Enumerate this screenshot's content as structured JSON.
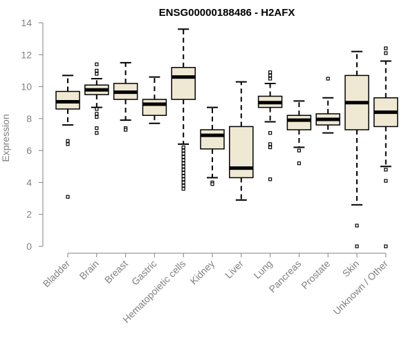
{
  "chart_data": {
    "type": "box",
    "title": "ENSG00000188486 - H2AFX",
    "xlabel": "",
    "ylabel": "Expression",
    "ylim": [
      0,
      14
    ],
    "yticks": [
      0,
      2,
      4,
      6,
      8,
      10,
      12,
      14
    ],
    "box_fill": "#efe8d3",
    "categories": [
      "Bladder",
      "Brain",
      "Breast",
      "Gastric",
      "Hematopoietic cells",
      "Kidney",
      "Liver",
      "Lung",
      "Pancreas",
      "Prostate",
      "Skin",
      "Unknown / Other"
    ],
    "series": [
      {
        "name": "Bladder",
        "whisker_low": 7.6,
        "q1": 8.6,
        "median": 9.05,
        "q3": 9.7,
        "whisker_high": 10.7,
        "outliers": [
          6.6,
          6.4,
          3.1
        ]
      },
      {
        "name": "Brain",
        "whisker_low": 8.7,
        "q1": 9.5,
        "median": 9.8,
        "q3": 10.1,
        "whisker_high": 10.5,
        "outliers": [
          11.4,
          11.0,
          10.8,
          8.6,
          8.3,
          8.1,
          7.4,
          7.1
        ]
      },
      {
        "name": "Breast",
        "whisker_low": 7.9,
        "q1": 9.2,
        "median": 9.65,
        "q3": 10.2,
        "whisker_high": 11.5,
        "outliers": [
          7.4,
          7.3
        ]
      },
      {
        "name": "Gastric",
        "whisker_low": 7.7,
        "q1": 8.2,
        "median": 8.9,
        "q3": 9.2,
        "whisker_high": 10.6,
        "outliers": []
      },
      {
        "name": "Hematopoietic cells",
        "whisker_low": 6.4,
        "q1": 9.2,
        "median": 10.6,
        "q3": 11.2,
        "whisker_high": 13.6,
        "outliers": [
          6.2,
          6.0,
          5.8,
          5.6,
          5.4,
          5.2,
          5.0,
          4.8,
          4.6,
          4.4,
          4.2,
          4.0,
          3.8,
          3.6
        ]
      },
      {
        "name": "Kidney",
        "whisker_low": 4.3,
        "q1": 6.1,
        "median": 6.95,
        "q3": 7.3,
        "whisker_high": 8.7,
        "outliers": [
          4.0,
          3.9
        ]
      },
      {
        "name": "Liver",
        "whisker_low": 2.9,
        "q1": 4.3,
        "median": 4.9,
        "q3": 7.5,
        "whisker_high": 10.3,
        "outliers": []
      },
      {
        "name": "Lung",
        "whisker_low": 7.8,
        "q1": 8.7,
        "median": 9.0,
        "q3": 9.4,
        "whisker_high": 10.2,
        "outliers": [
          10.9,
          10.7,
          10.5,
          7.1,
          6.4,
          6.2,
          4.2
        ]
      },
      {
        "name": "Pancreas",
        "whisker_low": 6.2,
        "q1": 7.3,
        "median": 7.9,
        "q3": 8.2,
        "whisker_high": 9.1,
        "outliers": [
          6.0,
          5.2
        ]
      },
      {
        "name": "Prostate",
        "whisker_low": 7.1,
        "q1": 7.6,
        "median": 7.95,
        "q3": 8.3,
        "whisker_high": 9.3,
        "outliers": [
          10.5
        ]
      },
      {
        "name": "Skin",
        "whisker_low": 2.6,
        "q1": 7.3,
        "median": 9.0,
        "q3": 10.7,
        "whisker_high": 12.2,
        "outliers": [
          1.3,
          0.0
        ]
      },
      {
        "name": "Unknown / Other",
        "whisker_low": 5.0,
        "q1": 7.5,
        "median": 8.4,
        "q3": 9.3,
        "whisker_high": 11.6,
        "outliers": [
          12.4,
          12.1,
          4.8,
          4.1,
          0.0
        ]
      }
    ]
  }
}
